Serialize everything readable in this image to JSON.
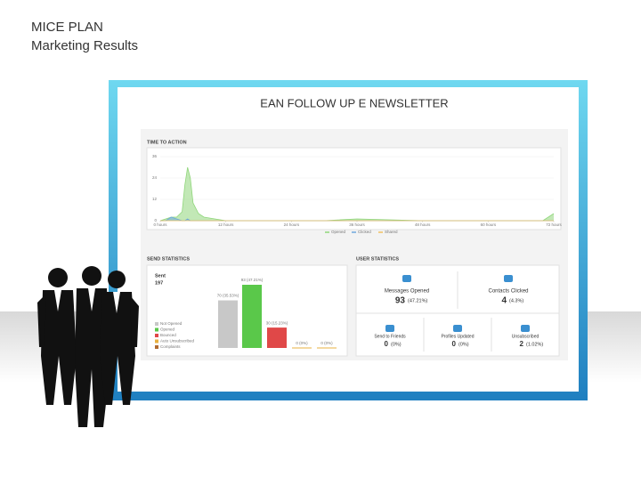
{
  "header": {
    "title": "MICE PLAN",
    "subtitle": "Marketing Results"
  },
  "panel": {
    "title": "EAN FOLLOW UP E NEWSLETTER"
  },
  "time_to_action": {
    "type": "line",
    "title": "TIME TO ACTION",
    "x": [
      0,
      1,
      2,
      3,
      4,
      4.5,
      5,
      5.5,
      6,
      7,
      8,
      10,
      12,
      18,
      24,
      30,
      36,
      48,
      60,
      70,
      72
    ],
    "series": [
      {
        "name": "Opened",
        "color": "#8fd67a",
        "values": [
          0,
          1,
          2,
          2,
          5,
          20,
          30,
          24,
          10,
          4,
          2,
          1,
          0,
          0,
          0,
          0,
          1,
          0,
          0,
          0,
          4
        ]
      },
      {
        "name": "Clicked",
        "color": "#6fa8dc",
        "values": [
          0,
          0,
          2,
          1,
          0,
          0,
          1,
          0,
          0,
          0,
          0,
          0,
          0,
          0,
          0,
          0,
          0,
          0,
          0,
          0,
          0
        ]
      },
      {
        "name": "Shared",
        "color": "#f0c060",
        "values": [
          0,
          0,
          0,
          0,
          0,
          0,
          0,
          0,
          0,
          0,
          0,
          0,
          0,
          0,
          0,
          0,
          0,
          0,
          0,
          0,
          0
        ]
      }
    ],
    "xlim": [
      0,
      72
    ],
    "xticks": [
      {
        "value": 0,
        "label": "0 hours"
      },
      {
        "value": 12,
        "label": "12 hours"
      },
      {
        "value": 24,
        "label": "24 hours"
      },
      {
        "value": 36,
        "label": "36 hours"
      },
      {
        "value": 48,
        "label": "48 hours"
      },
      {
        "value": 60,
        "label": "60 hours"
      },
      {
        "value": 72,
        "label": "72 hours"
      }
    ],
    "ylim": [
      0,
      36
    ],
    "yticks": [
      0,
      12,
      24,
      36
    ],
    "grid": true
  },
  "send_statistics": {
    "type": "bar",
    "title": "SEND STATISTICS",
    "sent_label": "Sent",
    "sent": 197,
    "categories": [
      "Not Opened",
      "Opened",
      "Bounced",
      "Auto Unsubscribed",
      "Complaints"
    ],
    "colors": [
      "#c8c8c8",
      "#5ac84a",
      "#e04848",
      "#e8b040",
      "#b06a30"
    ],
    "values": [
      70,
      93,
      30,
      0,
      0
    ],
    "value_labels": [
      "70 (35.53%)",
      "93 (47.21%)",
      "30 (15.23%)",
      "0 (0%)",
      "0 (0%)"
    ]
  },
  "user_statistics": {
    "title": "USER STATISTICS",
    "items": [
      {
        "label": "Messages Opened",
        "value": 93,
        "percent_label": "(47.21%)"
      },
      {
        "label": "Contacts Clicked",
        "value": 4,
        "percent_label": "(4.3%)"
      },
      {
        "label": "Send to Friends",
        "value": 0,
        "percent_label": "(0%)"
      },
      {
        "label": "Profiles Updated",
        "value": 0,
        "percent_label": "(0%)"
      },
      {
        "label": "Unsubscribed",
        "value": 2,
        "percent_label": "(1.02%)"
      }
    ]
  }
}
